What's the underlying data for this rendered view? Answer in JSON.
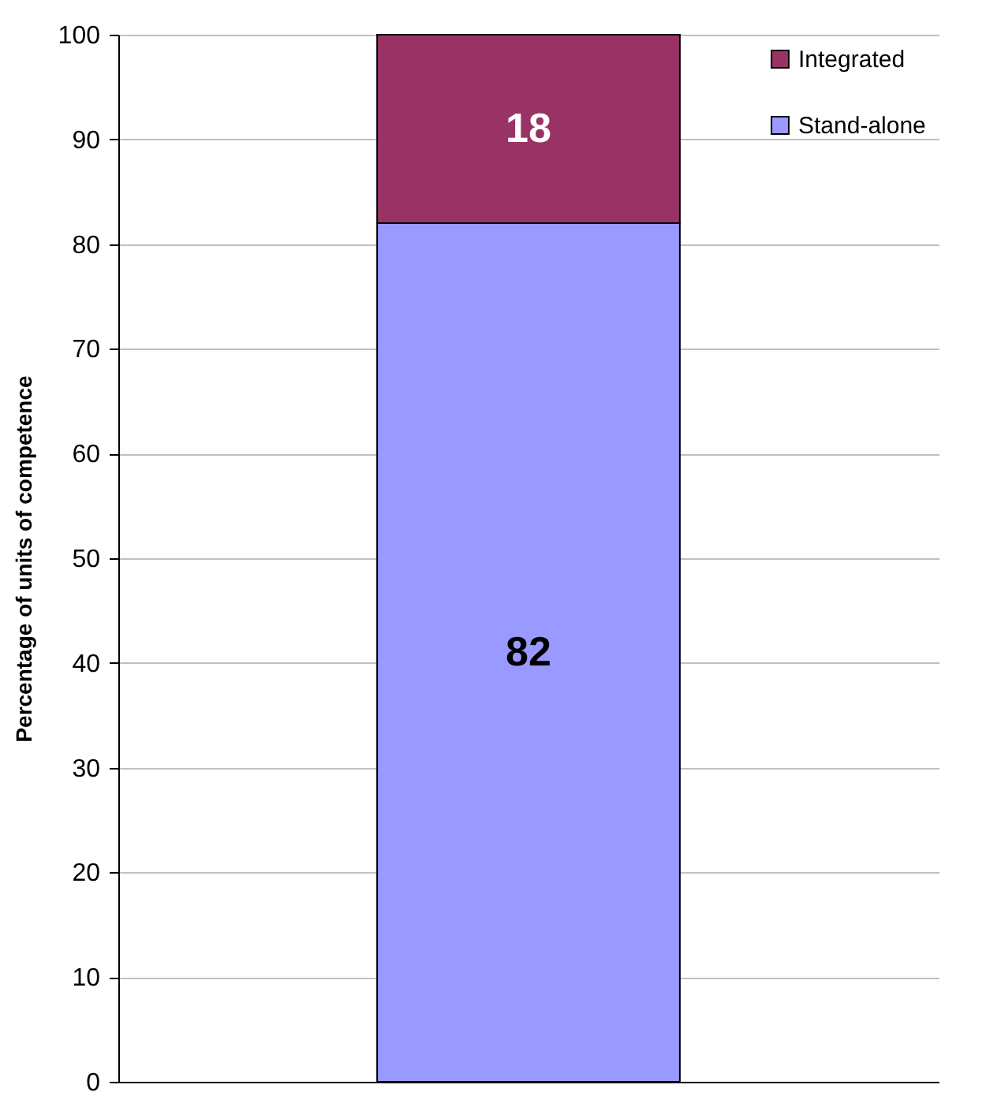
{
  "chart_data": {
    "type": "bar",
    "ylabel": "Percentage of units of competence",
    "categories": [
      null
    ],
    "stacked": true,
    "series": [
      {
        "name": "Stand-alone",
        "color": "#9999ff",
        "values": [
          82
        ]
      },
      {
        "name": "Integrated",
        "color": "#993366",
        "values": [
          18
        ]
      }
    ],
    "ylim": [
      0,
      100
    ],
    "yticks": [
      0,
      10,
      20,
      30,
      40,
      50,
      60,
      70,
      80,
      90,
      100
    ],
    "grid": "y",
    "legend": "top right",
    "data_labels": true,
    "tick_labels": "y"
  }
}
